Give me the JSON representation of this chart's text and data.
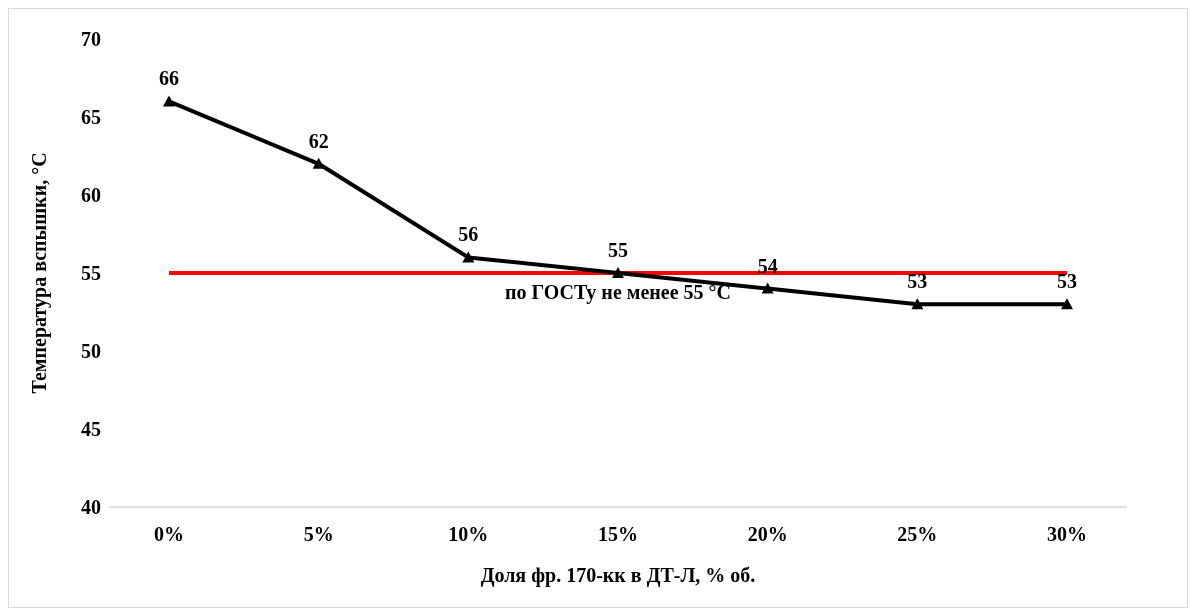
{
  "chart_data": {
    "type": "line",
    "xlabel": "Доля фр. 170-кк в ДТ-Л, % об.",
    "ylabel": "Температура вспышки, °C",
    "categories": [
      "0%",
      "5%",
      "10%",
      "15%",
      "20%",
      "25%",
      "30%"
    ],
    "series": [
      {
        "color": "#000000",
        "values": [
          66,
          62,
          56,
          55,
          54,
          53,
          53
        ]
      }
    ],
    "ylim": [
      40,
      70
    ],
    "yticks": [
      40,
      45,
      50,
      55,
      60,
      65,
      70
    ],
    "grid": false,
    "legend": false,
    "marker": "triangle",
    "line_style": "solid",
    "data_labels": true,
    "ref_lines": [
      {
        "axis": "y",
        "value": 55,
        "label": "по ГОСТу не менее 55 °C",
        "color": "#ff0000",
        "line_style": "solid"
      }
    ]
  }
}
